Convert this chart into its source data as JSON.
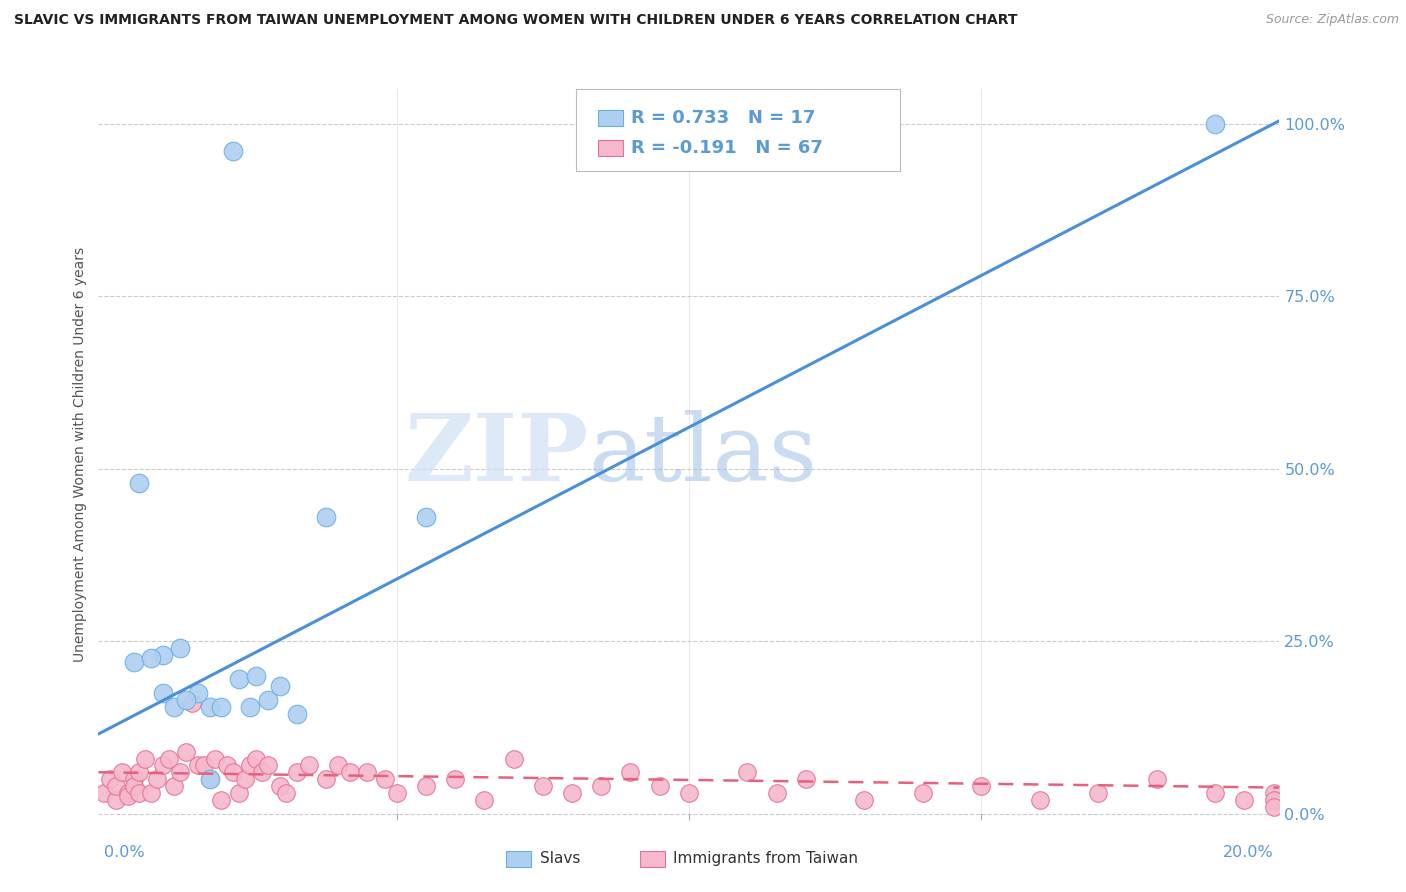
{
  "title": "SLAVIC VS IMMIGRANTS FROM TAIWAN UNEMPLOYMENT AMONG WOMEN WITH CHILDREN UNDER 6 YEARS CORRELATION CHART",
  "source": "Source: ZipAtlas.com",
  "ylabel": "Unemployment Among Women with Children Under 6 years",
  "watermark_zip": "ZIP",
  "watermark_atlas": "atlas",
  "legend_label_slavs": "Slavs",
  "legend_label_taiwan": "Immigrants from Taiwan",
  "slavs_R": 0.733,
  "slavs_N": 17,
  "taiwan_R": -0.191,
  "taiwan_N": 67,
  "slavs_color": "#aed0f0",
  "slavs_edge_color": "#6aaee8",
  "slavs_line_color": "#4a90d9",
  "taiwan_color": "#f5b8cc",
  "taiwan_edge_color": "#e87090",
  "taiwan_line_color": "#e8607a",
  "background_color": "#ffffff",
  "grid_color": "#cccccc",
  "title_color": "#222222",
  "axis_label_color": "#5a9bd5",
  "right_tick_color": "#5a9bd5",
  "slavs_x": [
    0.022,
    0.006,
    0.01,
    0.013,
    0.016,
    0.018,
    0.02,
    0.023,
    0.026,
    0.028,
    0.03,
    0.033,
    0.038,
    0.19
  ],
  "slavs_y": [
    0.96,
    0.48,
    0.23,
    0.24,
    0.175,
    0.155,
    0.155,
    0.195,
    0.2,
    0.165,
    0.185,
    0.145,
    0.43,
    1.0
  ],
  "slavs_x2": [
    0.005,
    0.008,
    0.01,
    0.012,
    0.014,
    0.018,
    0.025,
    0.055
  ],
  "slavs_y2": [
    0.22,
    0.225,
    0.175,
    0.155,
    0.165,
    0.05,
    0.155,
    0.43
  ],
  "taiwan_x": [
    0.0,
    0.001,
    0.002,
    0.002,
    0.003,
    0.004,
    0.004,
    0.005,
    0.005,
    0.006,
    0.006,
    0.007,
    0.008,
    0.009,
    0.01,
    0.011,
    0.012,
    0.013,
    0.014,
    0.015,
    0.016,
    0.017,
    0.018,
    0.019,
    0.02,
    0.021,
    0.022,
    0.023,
    0.024,
    0.025,
    0.026,
    0.027,
    0.028,
    0.03,
    0.031,
    0.033,
    0.035,
    0.038,
    0.04,
    0.042,
    0.045,
    0.048,
    0.05,
    0.055,
    0.06,
    0.065,
    0.07,
    0.075,
    0.08,
    0.085,
    0.09,
    0.095,
    0.1,
    0.11,
    0.115,
    0.12,
    0.13,
    0.14,
    0.15,
    0.16,
    0.17,
    0.18,
    0.19,
    0.195,
    0.2,
    0.2,
    0.2
  ],
  "taiwan_y": [
    0.03,
    0.05,
    0.02,
    0.04,
    0.06,
    0.03,
    0.025,
    0.05,
    0.04,
    0.03,
    0.06,
    0.08,
    0.03,
    0.05,
    0.07,
    0.08,
    0.04,
    0.06,
    0.09,
    0.16,
    0.07,
    0.07,
    0.05,
    0.08,
    0.02,
    0.07,
    0.06,
    0.03,
    0.05,
    0.07,
    0.08,
    0.06,
    0.07,
    0.04,
    0.03,
    0.06,
    0.07,
    0.05,
    0.07,
    0.06,
    0.06,
    0.05,
    0.03,
    0.04,
    0.05,
    0.02,
    0.08,
    0.04,
    0.03,
    0.04,
    0.06,
    0.04,
    0.03,
    0.06,
    0.03,
    0.05,
    0.02,
    0.03,
    0.04,
    0.02,
    0.03,
    0.05,
    0.03,
    0.02,
    0.03,
    0.02,
    0.01
  ],
  "slavs_line_x0": 0.0,
  "slavs_line_y0": 0.12,
  "slavs_line_x1": 0.2,
  "slavs_line_y1": 1.0,
  "taiwan_line_x0": 0.0,
  "taiwan_line_y0": 0.06,
  "taiwan_line_x1": 0.2,
  "taiwan_line_y1": 0.038,
  "xmin": 0.0,
  "xmax": 0.2,
  "ymin": 0.0,
  "ymax": 1.05
}
